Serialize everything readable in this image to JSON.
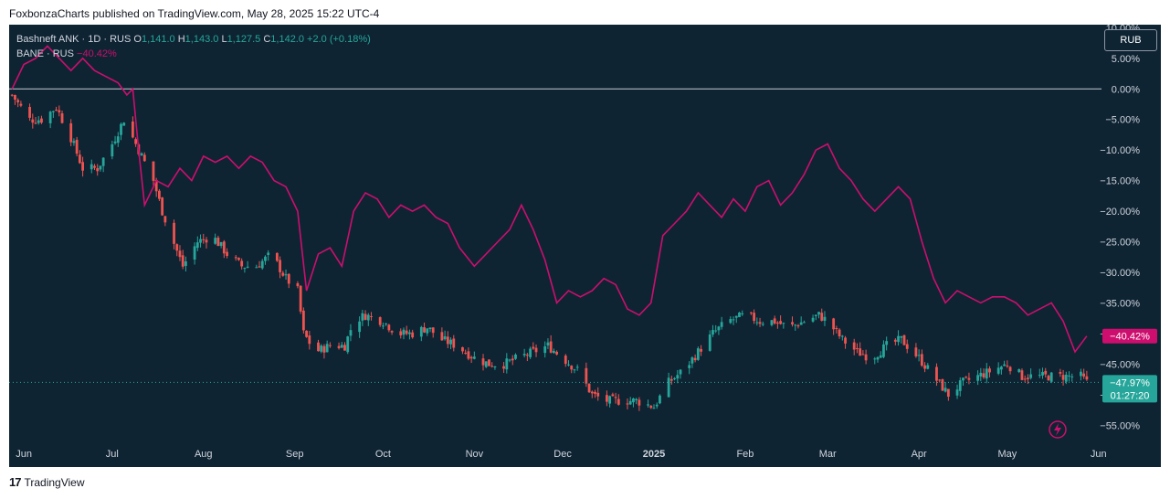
{
  "attribution": "FoxbonzaCharts published on TradingView.com, May 28, 2025 15:22 UTC-4",
  "footer": {
    "logo_text": "17",
    "brand": "TradingView"
  },
  "currency_button": "RUB",
  "legend": {
    "main_title": "Bashneft ANK · 1D · RUS",
    "o_label": "O",
    "o_value": "1,141.0",
    "h_label": "H",
    "h_value": "1,143.0",
    "l_label": "L",
    "l_value": "1,127.5",
    "c_label": "C",
    "c_value": "1,142.0",
    "change": "+2.0 (+0.18%)",
    "compare_title": "BANE · RUS",
    "compare_change": "−40.42%"
  },
  "colors": {
    "up": "#26a69a",
    "down": "#ef5350",
    "compare": "#ce0e6e",
    "background": "#0e2433",
    "axis_text": "#d1d4dc"
  },
  "icons": {
    "lightning": "lightning-icon"
  },
  "chart_data": {
    "type": "line",
    "x_range": [
      "2024-05-27",
      "2025-06-02"
    ],
    "ylim": [
      -57.5,
      10.5
    ],
    "y_ticks": [
      10,
      5,
      0,
      -5,
      -10,
      -15,
      -20,
      -25,
      -30,
      -35,
      -40,
      -45,
      -50,
      -55
    ],
    "y_tick_labels": [
      "10.00%",
      "5.00%",
      "0.00%",
      "−5.00%",
      "−10.00%",
      "−15.00%",
      "−20.00%",
      "−25.00%",
      "−30.00%",
      "−35.00%",
      "−40.00%",
      "−45.00%",
      "−50.00%",
      "−55.00%"
    ],
    "x_ticks": [
      "Jun",
      "Jul",
      "Aug",
      "Sep",
      "Oct",
      "Nov",
      "Dec",
      "2025",
      "Feb",
      "Mar",
      "Apr",
      "May",
      "Jun"
    ],
    "x_tick_dates": [
      "2024-06-01",
      "2024-07-01",
      "2024-08-01",
      "2024-09-01",
      "2024-10-01",
      "2024-11-01",
      "2024-12-01",
      "2025-01-01",
      "2025-02-01",
      "2025-03-01",
      "2025-04-01",
      "2025-05-01",
      "2025-06-01"
    ],
    "grid": false,
    "zero_line": true,
    "series": [
      {
        "name": "Bashneft ANK",
        "style": "candles",
        "last_label": "−47.97%",
        "countdown": "01:27:20",
        "points": [
          [
            "2024-05-28",
            -1
          ],
          [
            "2024-06-03",
            -5
          ],
          [
            "2024-06-07",
            -5
          ],
          [
            "2024-06-12",
            -3
          ],
          [
            "2024-06-17",
            -8
          ],
          [
            "2024-06-21",
            -13
          ],
          [
            "2024-06-26",
            -13
          ],
          [
            "2024-07-01",
            -9
          ],
          [
            "2024-07-05",
            -5
          ],
          [
            "2024-07-10",
            -10
          ],
          [
            "2024-07-15",
            -15
          ],
          [
            "2024-07-18",
            -20
          ],
          [
            "2024-07-21",
            -24
          ],
          [
            "2024-07-25",
            -29
          ],
          [
            "2024-07-30",
            -25
          ],
          [
            "2024-08-04",
            -24
          ],
          [
            "2024-08-09",
            -27
          ],
          [
            "2024-08-14",
            -29
          ],
          [
            "2024-08-19",
            -29
          ],
          [
            "2024-08-24",
            -27
          ],
          [
            "2024-08-29",
            -31
          ],
          [
            "2024-09-02",
            -33
          ],
          [
            "2024-09-04",
            -40
          ],
          [
            "2024-09-08",
            -43
          ],
          [
            "2024-09-13",
            -42
          ],
          [
            "2024-09-18",
            -42
          ],
          [
            "2024-09-21",
            -38
          ],
          [
            "2024-09-25",
            -37
          ],
          [
            "2024-10-01",
            -38
          ],
          [
            "2024-10-06",
            -40
          ],
          [
            "2024-10-11",
            -40
          ],
          [
            "2024-10-16",
            -39
          ],
          [
            "2024-10-21",
            -41
          ],
          [
            "2024-10-26",
            -42
          ],
          [
            "2024-11-01",
            -44
          ],
          [
            "2024-11-06",
            -45
          ],
          [
            "2024-11-11",
            -45
          ],
          [
            "2024-11-16",
            -44
          ],
          [
            "2024-11-21",
            -43
          ],
          [
            "2024-11-26",
            -42
          ],
          [
            "2024-12-01",
            -44
          ],
          [
            "2024-12-06",
            -46
          ],
          [
            "2024-12-11",
            -50
          ],
          [
            "2024-12-16",
            -51
          ],
          [
            "2024-12-21",
            -51
          ],
          [
            "2024-12-26",
            -51
          ],
          [
            "2025-01-01",
            -52
          ],
          [
            "2025-01-06",
            -48
          ],
          [
            "2025-01-11",
            -46
          ],
          [
            "2025-01-16",
            -43
          ],
          [
            "2025-01-21",
            -40
          ],
          [
            "2025-01-26",
            -38
          ],
          [
            "2025-02-01",
            -37
          ],
          [
            "2025-02-06",
            -38
          ],
          [
            "2025-02-11",
            -38
          ],
          [
            "2025-02-16",
            -39
          ],
          [
            "2025-02-21",
            -38
          ],
          [
            "2025-02-26",
            -37
          ],
          [
            "2025-03-01",
            -38
          ],
          [
            "2025-03-06",
            -41
          ],
          [
            "2025-03-11",
            -43
          ],
          [
            "2025-03-16",
            -44
          ],
          [
            "2025-03-21",
            -42
          ],
          [
            "2025-03-26",
            -41
          ],
          [
            "2025-04-01",
            -44
          ],
          [
            "2025-04-06",
            -47
          ],
          [
            "2025-04-11",
            -50
          ],
          [
            "2025-04-16",
            -48
          ],
          [
            "2025-04-21",
            -47
          ],
          [
            "2025-04-26",
            -46
          ],
          [
            "2025-05-01",
            -45
          ],
          [
            "2025-05-06",
            -47
          ],
          [
            "2025-05-11",
            -47
          ],
          [
            "2025-05-16",
            -47
          ],
          [
            "2025-05-21",
            -47
          ],
          [
            "2025-05-26",
            -47
          ],
          [
            "2025-05-28",
            -48
          ]
        ]
      },
      {
        "name": "BANE · RUS",
        "style": "line",
        "last_label": "−40.42%",
        "points": [
          [
            "2024-05-28",
            0
          ],
          [
            "2024-06-01",
            4
          ],
          [
            "2024-06-05",
            5
          ],
          [
            "2024-06-09",
            7
          ],
          [
            "2024-06-13",
            5
          ],
          [
            "2024-06-17",
            3
          ],
          [
            "2024-06-21",
            5
          ],
          [
            "2024-06-25",
            3
          ],
          [
            "2024-06-29",
            2
          ],
          [
            "2024-07-03",
            1
          ],
          [
            "2024-07-06",
            -1
          ],
          [
            "2024-07-08",
            0
          ],
          [
            "2024-07-10",
            -10
          ],
          [
            "2024-07-12",
            -19
          ],
          [
            "2024-07-16",
            -15
          ],
          [
            "2024-07-20",
            -16
          ],
          [
            "2024-07-24",
            -13
          ],
          [
            "2024-07-28",
            -15
          ],
          [
            "2024-08-01",
            -11
          ],
          [
            "2024-08-05",
            -12
          ],
          [
            "2024-08-09",
            -11
          ],
          [
            "2024-08-13",
            -13
          ],
          [
            "2024-08-17",
            -11
          ],
          [
            "2024-08-21",
            -12
          ],
          [
            "2024-08-25",
            -15
          ],
          [
            "2024-08-29",
            -16
          ],
          [
            "2024-09-02",
            -20
          ],
          [
            "2024-09-05",
            -33
          ],
          [
            "2024-09-09",
            -27
          ],
          [
            "2024-09-13",
            -26
          ],
          [
            "2024-09-17",
            -29
          ],
          [
            "2024-09-21",
            -20
          ],
          [
            "2024-09-25",
            -17
          ],
          [
            "2024-09-29",
            -18
          ],
          [
            "2024-10-03",
            -21
          ],
          [
            "2024-10-07",
            -19
          ],
          [
            "2024-10-11",
            -20
          ],
          [
            "2024-10-15",
            -19
          ],
          [
            "2024-10-19",
            -21
          ],
          [
            "2024-10-23",
            -22
          ],
          [
            "2024-10-27",
            -26
          ],
          [
            "2024-11-01",
            -29
          ],
          [
            "2024-11-05",
            -27
          ],
          [
            "2024-11-09",
            -25
          ],
          [
            "2024-11-13",
            -23
          ],
          [
            "2024-11-17",
            -19
          ],
          [
            "2024-11-21",
            -23
          ],
          [
            "2024-11-25",
            -28
          ],
          [
            "2024-11-29",
            -35
          ],
          [
            "2024-12-03",
            -33
          ],
          [
            "2024-12-07",
            -34
          ],
          [
            "2024-12-11",
            -33
          ],
          [
            "2024-12-15",
            -31
          ],
          [
            "2024-12-19",
            -32
          ],
          [
            "2024-12-23",
            -36
          ],
          [
            "2024-12-27",
            -37
          ],
          [
            "2024-12-31",
            -35
          ],
          [
            "2025-01-04",
            -24
          ],
          [
            "2025-01-08",
            -22
          ],
          [
            "2025-01-12",
            -20
          ],
          [
            "2025-01-16",
            -17
          ],
          [
            "2025-01-20",
            -19
          ],
          [
            "2025-01-24",
            -21
          ],
          [
            "2025-01-28",
            -18
          ],
          [
            "2025-02-01",
            -20
          ],
          [
            "2025-02-05",
            -16
          ],
          [
            "2025-02-09",
            -15
          ],
          [
            "2025-02-13",
            -19
          ],
          [
            "2025-02-17",
            -17
          ],
          [
            "2025-02-21",
            -14
          ],
          [
            "2025-02-25",
            -10
          ],
          [
            "2025-03-01",
            -9
          ],
          [
            "2025-03-05",
            -13
          ],
          [
            "2025-03-09",
            -15
          ],
          [
            "2025-03-13",
            -18
          ],
          [
            "2025-03-17",
            -20
          ],
          [
            "2025-03-21",
            -18
          ],
          [
            "2025-03-25",
            -16
          ],
          [
            "2025-03-29",
            -18
          ],
          [
            "2025-04-02",
            -25
          ],
          [
            "2025-04-06",
            -31
          ],
          [
            "2025-04-10",
            -35
          ],
          [
            "2025-04-14",
            -33
          ],
          [
            "2025-04-18",
            -34
          ],
          [
            "2025-04-22",
            -35
          ],
          [
            "2025-04-26",
            -34
          ],
          [
            "2025-04-30",
            -34
          ],
          [
            "2025-05-04",
            -35
          ],
          [
            "2025-05-08",
            -37
          ],
          [
            "2025-05-12",
            -36
          ],
          [
            "2025-05-16",
            -35
          ],
          [
            "2025-05-20",
            -38
          ],
          [
            "2025-05-24",
            -43
          ],
          [
            "2025-05-28",
            -40.42
          ]
        ]
      }
    ]
  }
}
